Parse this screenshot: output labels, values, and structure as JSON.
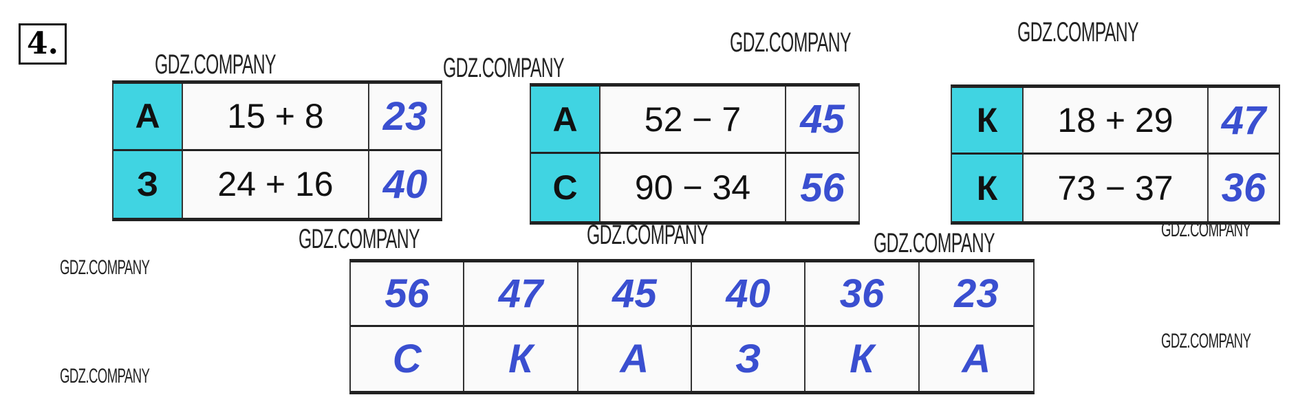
{
  "exercise_number": "4.",
  "watermark": "GDZ.COMPANY",
  "colors": {
    "letter_cell": "#40d4e2",
    "answer_text": "#3a4fd0"
  },
  "tasks": [
    {
      "rows": [
        {
          "letter": "А",
          "expression": "15 + 8",
          "answer": "23"
        },
        {
          "letter": "З",
          "expression": "24 + 16",
          "answer": "40"
        }
      ]
    },
    {
      "rows": [
        {
          "letter": "А",
          "expression": "52 − 7",
          "answer": "45"
        },
        {
          "letter": "С",
          "expression": "90 − 34",
          "answer": "56"
        }
      ]
    },
    {
      "rows": [
        {
          "letter": "К",
          "expression": "18 + 29",
          "answer": "47"
        },
        {
          "letter": "К",
          "expression": "73 − 37",
          "answer": "36"
        }
      ]
    }
  ],
  "key_table": {
    "numbers": [
      "56",
      "47",
      "45",
      "40",
      "36",
      "23"
    ],
    "letters": [
      "С",
      "К",
      "А",
      "З",
      "К",
      "А"
    ]
  }
}
